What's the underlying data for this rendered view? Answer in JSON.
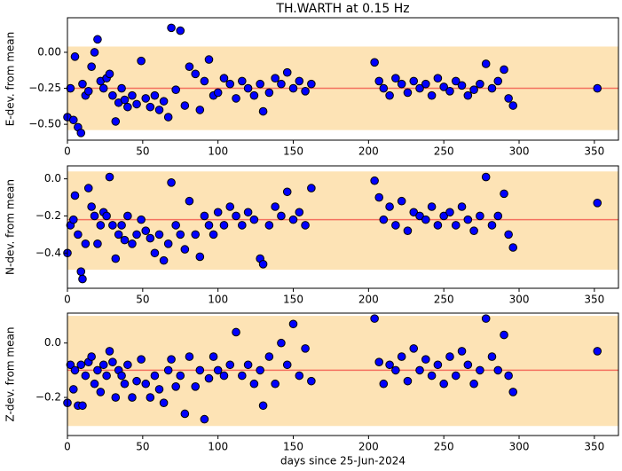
{
  "chart_data": [
    {
      "type": "scatter",
      "title": "TH.WARTH at 0.15 Hz",
      "y_label": "E-dev. from mean",
      "x": [
        0,
        2,
        4,
        5,
        7,
        9,
        10,
        12,
        14,
        16,
        18,
        20,
        22,
        24,
        26,
        28,
        30,
        32,
        34,
        36,
        38,
        40,
        43,
        46,
        49,
        52,
        55,
        58,
        61,
        64,
        67,
        69,
        72,
        75,
        78,
        81,
        85,
        88,
        91,
        94,
        97,
        100,
        104,
        108,
        112,
        116,
        120,
        124,
        128,
        130,
        134,
        138,
        142,
        146,
        150,
        154,
        158,
        162,
        204,
        207,
        210,
        214,
        218,
        222,
        226,
        230,
        234,
        238,
        242,
        246,
        250,
        254,
        258,
        262,
        266,
        270,
        274,
        278,
        282,
        286,
        290,
        293,
        296,
        352
      ],
      "values": [
        -0.45,
        -0.25,
        -0.47,
        -0.03,
        -0.52,
        -0.56,
        -0.22,
        -0.3,
        -0.27,
        -0.1,
        0.0,
        0.09,
        -0.2,
        -0.25,
        -0.18,
        -0.15,
        -0.3,
        -0.48,
        -0.35,
        -0.25,
        -0.33,
        -0.38,
        -0.3,
        -0.36,
        -0.06,
        -0.32,
        -0.38,
        -0.3,
        -0.4,
        -0.34,
        -0.45,
        0.17,
        -0.26,
        0.15,
        -0.37,
        -0.1,
        -0.15,
        -0.4,
        -0.2,
        -0.05,
        -0.3,
        -0.28,
        -0.18,
        -0.22,
        -0.32,
        -0.2,
        -0.25,
        -0.3,
        -0.22,
        -0.41,
        -0.28,
        -0.18,
        -0.22,
        -0.14,
        -0.25,
        -0.2,
        -0.27,
        -0.22,
        -0.07,
        -0.2,
        -0.25,
        -0.3,
        -0.18,
        -0.22,
        -0.28,
        -0.2,
        -0.25,
        -0.22,
        -0.3,
        -0.18,
        -0.24,
        -0.27,
        -0.2,
        -0.23,
        -0.3,
        -0.26,
        -0.22,
        -0.08,
        -0.25,
        -0.2,
        -0.12,
        -0.32,
        -0.37,
        -0.25
      ],
      "color": "#0000ff",
      "band": [
        -0.54,
        0.04
      ],
      "band_color": "#fde3b5",
      "mean": -0.25,
      "mean_color": "#f4705e",
      "xlim": [
        0,
        366
      ],
      "xticks": [
        0,
        50,
        100,
        150,
        200,
        250,
        300,
        350
      ],
      "ylim": [
        -0.61,
        0.24
      ],
      "yticks": [
        {
          "value": 0,
          "label": "0.00"
        },
        {
          "value": -0.25,
          "label": "−0.25"
        },
        {
          "value": -0.5,
          "label": "−0.50"
        }
      ]
    },
    {
      "type": "scatter",
      "y_label": "N-dev. from mean",
      "x": [
        0,
        2,
        4,
        5,
        7,
        9,
        10,
        12,
        14,
        16,
        18,
        20,
        22,
        24,
        26,
        28,
        30,
        32,
        34,
        36,
        38,
        40,
        43,
        46,
        49,
        52,
        55,
        58,
        61,
        64,
        67,
        69,
        72,
        75,
        78,
        81,
        85,
        88,
        91,
        94,
        97,
        100,
        104,
        108,
        112,
        116,
        120,
        124,
        128,
        130,
        134,
        138,
        142,
        146,
        150,
        154,
        158,
        162,
        204,
        207,
        210,
        214,
        218,
        222,
        226,
        230,
        234,
        238,
        242,
        246,
        250,
        254,
        258,
        262,
        266,
        270,
        274,
        278,
        282,
        286,
        290,
        293,
        296,
        352
      ],
      "values": [
        -0.4,
        -0.25,
        -0.22,
        -0.09,
        -0.3,
        -0.5,
        -0.54,
        -0.35,
        -0.05,
        -0.15,
        -0.2,
        -0.35,
        -0.25,
        -0.18,
        -0.2,
        0.01,
        -0.25,
        -0.43,
        -0.3,
        -0.25,
        -0.33,
        -0.2,
        -0.35,
        -0.3,
        -0.22,
        -0.28,
        -0.32,
        -0.4,
        -0.3,
        -0.44,
        -0.35,
        -0.02,
        -0.25,
        -0.3,
        -0.38,
        -0.12,
        -0.3,
        -0.42,
        -0.2,
        -0.25,
        -0.3,
        -0.18,
        -0.25,
        -0.15,
        -0.2,
        -0.25,
        -0.18,
        -0.22,
        -0.43,
        -0.46,
        -0.25,
        -0.15,
        -0.2,
        -0.07,
        -0.22,
        -0.18,
        -0.25,
        -0.05,
        -0.01,
        -0.1,
        -0.22,
        -0.15,
        -0.25,
        -0.12,
        -0.28,
        -0.18,
        -0.2,
        -0.22,
        -0.15,
        -0.25,
        -0.2,
        -0.18,
        -0.25,
        -0.15,
        -0.22,
        -0.28,
        -0.2,
        0.01,
        -0.25,
        -0.2,
        -0.08,
        -0.3,
        -0.37,
        -0.13
      ],
      "color": "#0000ff",
      "band": [
        -0.49,
        0.04
      ],
      "band_color": "#fde3b5",
      "mean": -0.22,
      "mean_color": "#f4705e",
      "xlim": [
        0,
        366
      ],
      "xticks": [
        0,
        50,
        100,
        150,
        200,
        250,
        300,
        350
      ],
      "ylim": [
        -0.59,
        0.07
      ],
      "yticks": [
        {
          "value": 0,
          "label": "0.0"
        },
        {
          "value": -0.2,
          "label": "−0.2"
        },
        {
          "value": -0.4,
          "label": "−0.4"
        }
      ]
    },
    {
      "type": "scatter",
      "y_label": "Z-dev. from mean",
      "x_label": "days since 25-Jun-2024",
      "x": [
        0,
        2,
        4,
        5,
        7,
        9,
        10,
        12,
        14,
        16,
        18,
        20,
        22,
        24,
        26,
        28,
        30,
        32,
        34,
        36,
        38,
        40,
        43,
        46,
        49,
        52,
        55,
        58,
        61,
        64,
        67,
        69,
        72,
        75,
        78,
        81,
        85,
        88,
        91,
        94,
        97,
        100,
        104,
        108,
        112,
        116,
        120,
        124,
        128,
        130,
        134,
        138,
        142,
        146,
        150,
        154,
        158,
        162,
        204,
        207,
        210,
        214,
        218,
        222,
        226,
        230,
        234,
        238,
        242,
        246,
        250,
        254,
        258,
        262,
        266,
        270,
        274,
        278,
        282,
        286,
        290,
        293,
        296,
        352
      ],
      "values": [
        -0.22,
        -0.08,
        -0.17,
        -0.1,
        -0.23,
        -0.08,
        -0.23,
        -0.12,
        -0.07,
        -0.05,
        -0.15,
        -0.1,
        -0.18,
        -0.08,
        -0.12,
        -0.03,
        -0.07,
        -0.2,
        -0.1,
        -0.12,
        -0.15,
        -0.08,
        -0.2,
        -0.14,
        -0.06,
        -0.15,
        -0.2,
        -0.12,
        -0.17,
        -0.22,
        -0.1,
        -0.06,
        -0.16,
        -0.12,
        -0.26,
        -0.05,
        -0.16,
        -0.1,
        -0.28,
        -0.13,
        -0.05,
        -0.1,
        -0.12,
        -0.08,
        0.04,
        -0.12,
        -0.08,
        -0.15,
        -0.1,
        -0.23,
        -0.05,
        -0.15,
        0.0,
        -0.08,
        0.07,
        -0.12,
        -0.02,
        -0.14,
        0.09,
        -0.07,
        -0.15,
        -0.08,
        -0.1,
        -0.05,
        -0.14,
        -0.02,
        -0.1,
        -0.06,
        -0.12,
        -0.08,
        -0.15,
        -0.05,
        -0.12,
        -0.03,
        -0.08,
        -0.15,
        -0.1,
        0.09,
        -0.05,
        -0.1,
        0.03,
        -0.12,
        -0.18,
        -0.03
      ],
      "color": "#0000ff",
      "band": [
        -0.305,
        0.1
      ],
      "band_color": "#fde3b5",
      "mean": -0.1,
      "mean_color": "#f4705e",
      "xlim": [
        0,
        366
      ],
      "xticks": [
        0,
        50,
        100,
        150,
        200,
        250,
        300,
        350
      ],
      "ylim": [
        -0.34,
        0.11
      ],
      "yticks": [
        {
          "value": 0,
          "label": "0.0"
        },
        {
          "value": -0.2,
          "label": "−0.2"
        }
      ]
    }
  ]
}
